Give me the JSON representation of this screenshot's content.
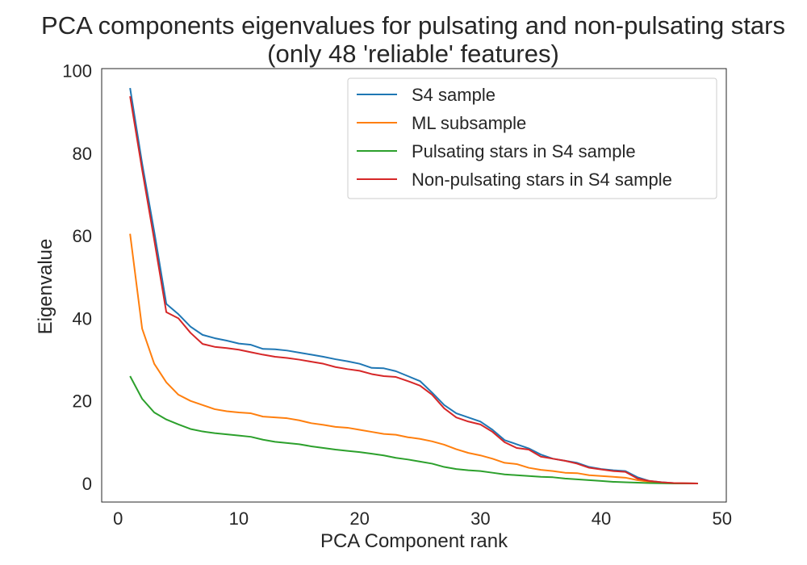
{
  "chart_data": {
    "type": "line",
    "title": "PCA components eigenvalues for pulsating and non-pulsating stars",
    "subtitle": "(only 48 'reliable' features)",
    "xlabel": "PCA Component rank",
    "ylabel": "Eigenvalue",
    "xlim": [
      -1.35,
      50.35
    ],
    "ylim": [
      -4.5,
      100.5
    ],
    "xticks": [
      0,
      10,
      20,
      30,
      40,
      50
    ],
    "yticks": [
      0,
      20,
      40,
      60,
      80,
      100
    ],
    "grid": false,
    "legend_position": "upper-right",
    "x": [
      1,
      2,
      3,
      4,
      5,
      6,
      7,
      8,
      9,
      10,
      11,
      12,
      13,
      14,
      15,
      16,
      17,
      18,
      19,
      20,
      21,
      22,
      23,
      24,
      25,
      26,
      27,
      28,
      29,
      30,
      31,
      32,
      33,
      34,
      35,
      36,
      37,
      38,
      39,
      40,
      41,
      42,
      43,
      44,
      45,
      46,
      47,
      48
    ],
    "series": [
      {
        "name": "S4 sample",
        "color": "#1f77b4",
        "values": [
          95.8,
          77.5,
          61.0,
          43.5,
          41.0,
          38.0,
          36.0,
          35.2,
          34.6,
          33.9,
          33.6,
          32.6,
          32.5,
          32.2,
          31.7,
          31.2,
          30.7,
          30.1,
          29.6,
          29.0,
          28.0,
          27.9,
          27.2,
          26.0,
          24.8,
          22.0,
          19.0,
          17.0,
          16.0,
          15.0,
          13.0,
          10.5,
          9.5,
          8.5,
          7.0,
          6.0,
          5.5,
          5.0,
          4.0,
          3.5,
          3.2,
          3.0,
          1.5,
          0.6,
          0.3,
          0.1,
          0.05,
          0.0
        ]
      },
      {
        "name": "ML subsample",
        "color": "#ff7f0e",
        "values": [
          60.5,
          37.5,
          29.0,
          24.5,
          21.5,
          20.0,
          19.0,
          18.0,
          17.5,
          17.2,
          17.0,
          16.2,
          16.0,
          15.8,
          15.3,
          14.6,
          14.2,
          13.7,
          13.5,
          13.0,
          12.5,
          12.0,
          11.8,
          11.2,
          10.8,
          10.2,
          9.4,
          8.3,
          7.4,
          6.8,
          6.0,
          5.0,
          4.7,
          3.8,
          3.3,
          3.0,
          2.6,
          2.5,
          2.0,
          1.8,
          1.6,
          1.4,
          0.8,
          0.4,
          0.2,
          0.1,
          0.05,
          0.0
        ]
      },
      {
        "name": "Pulsating stars in S4 sample",
        "color": "#2ca02c",
        "values": [
          26.0,
          20.5,
          17.2,
          15.5,
          14.3,
          13.2,
          12.6,
          12.2,
          11.9,
          11.6,
          11.3,
          10.6,
          10.1,
          9.8,
          9.5,
          9.0,
          8.6,
          8.2,
          7.9,
          7.6,
          7.2,
          6.8,
          6.2,
          5.8,
          5.3,
          4.8,
          4.0,
          3.5,
          3.2,
          3.0,
          2.6,
          2.2,
          2.0,
          1.8,
          1.6,
          1.5,
          1.2,
          1.0,
          0.8,
          0.6,
          0.4,
          0.3,
          0.2,
          0.1,
          0.05,
          0.0,
          0.0,
          0.0
        ]
      },
      {
        "name": "Non-pulsating stars in S4 sample",
        "color": "#d62728",
        "values": [
          93.8,
          76.0,
          59.0,
          41.5,
          40.0,
          36.5,
          33.8,
          33.1,
          32.8,
          32.4,
          31.8,
          31.2,
          30.7,
          30.4,
          30.0,
          29.5,
          29.0,
          28.2,
          27.7,
          27.3,
          26.5,
          26.0,
          25.8,
          24.8,
          23.7,
          21.5,
          18.2,
          16.0,
          15.0,
          14.3,
          12.5,
          10.0,
          8.6,
          8.2,
          6.5,
          6.0,
          5.5,
          4.8,
          3.8,
          3.4,
          3.0,
          2.8,
          1.2,
          0.6,
          0.3,
          0.1,
          0.05,
          0.0
        ]
      }
    ]
  }
}
